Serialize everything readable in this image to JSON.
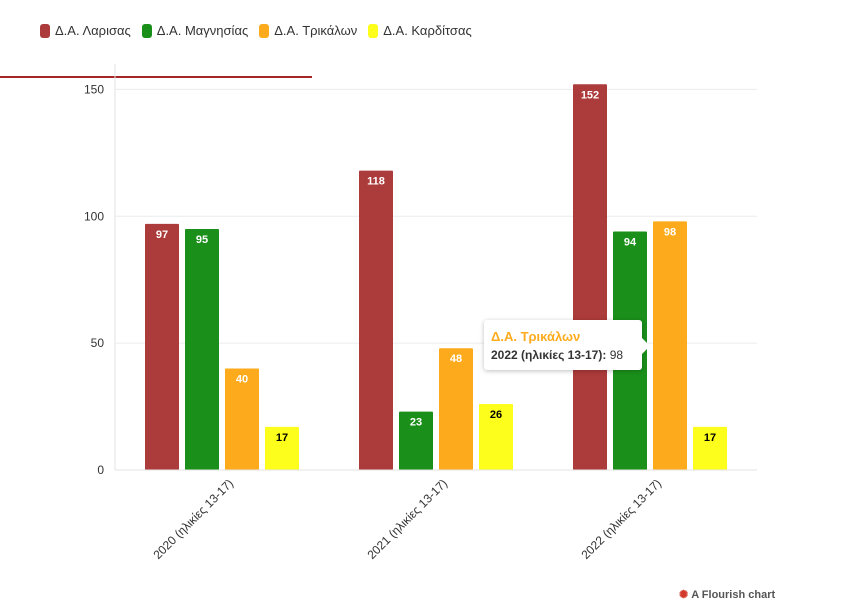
{
  "legend": [
    {
      "label": "Δ.Α. Λαρισας",
      "color": "#ac3b3b"
    },
    {
      "label": "Δ.Α. Μαγνησίας",
      "color": "#1a8f1a"
    },
    {
      "label": "Δ.Α. Τρικάλων",
      "color": "#fdab1c"
    },
    {
      "label": "Δ.Α. Καρδίτσας",
      "color": "#fefe1d"
    }
  ],
  "tooltip": {
    "title": "Δ.Α. Τρικάλων",
    "category": "2022 (ηλικίες 13-17)",
    "separator": ":",
    "value": "98"
  },
  "credit": {
    "logo_icon": "flourish-logo-icon",
    "text": "A Flourish chart"
  },
  "chart_data": {
    "type": "bar",
    "categories": [
      "2020 (ηλικίες 13-17)",
      "2021 (ηλικίες 13-17)",
      "2022 (ηλικίες 13-17)"
    ],
    "series": [
      {
        "name": "Δ.Α. Λαρισας",
        "color": "#ac3b3b",
        "label_color": "#ffffff",
        "values": [
          97,
          118,
          152
        ]
      },
      {
        "name": "Δ.Α. Μαγνησίας",
        "color": "#1a8f1a",
        "label_color": "#ffffff",
        "values": [
          95,
          23,
          94
        ]
      },
      {
        "name": "Δ.Α. Τρικάλων",
        "color": "#fdab1c",
        "label_color": "#ffffff",
        "values": [
          40,
          48,
          98
        ]
      },
      {
        "name": "Δ.Α. Καρδίτσας",
        "color": "#fefe1d",
        "label_color": "#000000",
        "values": [
          17,
          26,
          17
        ]
      }
    ],
    "yticks": [
      0,
      50,
      100,
      150
    ],
    "ylim": [
      0,
      160
    ],
    "grid": true,
    "legend_position": "top-left",
    "title": "",
    "xlabel": "",
    "ylabel": ""
  }
}
